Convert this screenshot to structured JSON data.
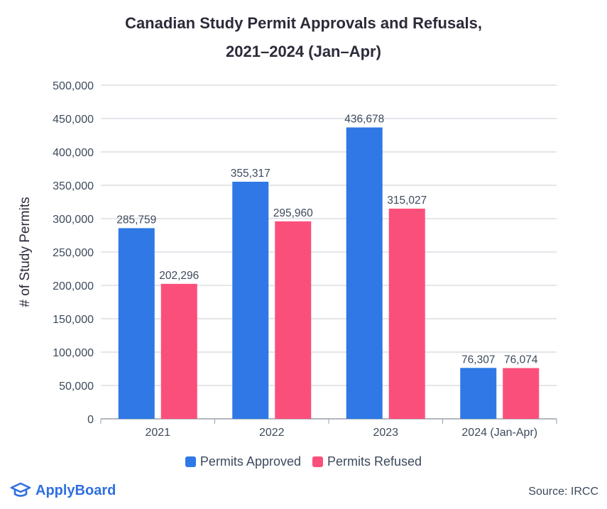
{
  "chart_data": {
    "type": "bar",
    "title_line1": "Canadian Study Permit Approvals and Refusals,",
    "title_line2": "2021–2024 (Jan–Apr)",
    "xlabel": "",
    "ylabel": "# of Study Permits",
    "ylim": [
      0,
      500000
    ],
    "yticks": [
      0,
      50000,
      100000,
      150000,
      200000,
      250000,
      300000,
      350000,
      400000,
      450000,
      500000
    ],
    "ytick_labels": [
      "0",
      "50,000",
      "100,000",
      "150,000",
      "200,000",
      "250,000",
      "300,000",
      "350,000",
      "400,000",
      "450,000",
      "500,000"
    ],
    "categories": [
      "2021",
      "2022",
      "2023",
      "2024 (Jan-Apr)"
    ],
    "series": [
      {
        "name": "Permits Approved",
        "color": "#2f78e6",
        "values": [
          285759,
          355317,
          436678,
          76307
        ],
        "labels": [
          "285,759",
          "355,317",
          "436,678",
          "76,307"
        ]
      },
      {
        "name": "Permits Refused",
        "color": "#fb4f7b",
        "values": [
          202296,
          295960,
          315027,
          76074
        ],
        "labels": [
          "202,296",
          "295,960",
          "315,027",
          "76,074"
        ]
      }
    ],
    "grid": true,
    "legend_position": "bottom-center"
  },
  "source": "Source: IRCC",
  "brand": "ApplyBoard",
  "brand_icon": "graduation-cap-icon",
  "colors": {
    "axis_text": "#3d4a5c",
    "grid": "#c8ccd4",
    "brand": "#2f6fe0"
  }
}
